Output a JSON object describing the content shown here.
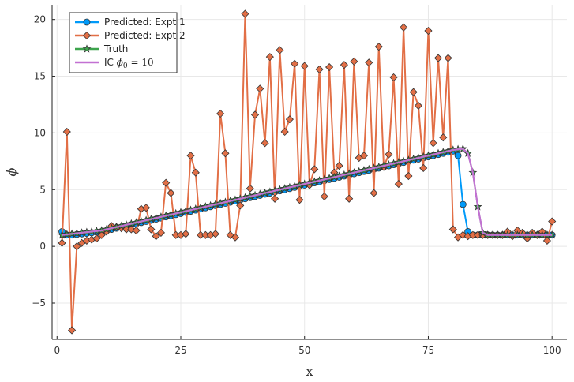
{
  "chart_data": {
    "type": "line",
    "xlabel": "x",
    "ylabel": "ϕ",
    "xlim": [
      -1,
      103
    ],
    "ylim": [
      -8.2,
      21.3
    ],
    "xticks": [
      0,
      25,
      50,
      75,
      100
    ],
    "yticks": [
      -5,
      0,
      5,
      10,
      15,
      20
    ],
    "grid": true,
    "legend_position": "top-left",
    "series": [
      {
        "name": "Predicted: Expt 1",
        "color": "#009af9",
        "marker": "circle",
        "x": [
          1,
          2,
          3,
          4,
          5,
          6,
          7,
          8,
          9,
          10,
          11,
          12,
          13,
          14,
          15,
          16,
          17,
          18,
          19,
          20,
          21,
          22,
          23,
          24,
          25,
          26,
          27,
          28,
          29,
          30,
          31,
          32,
          33,
          34,
          35,
          36,
          37,
          38,
          39,
          40,
          41,
          42,
          43,
          44,
          45,
          46,
          47,
          48,
          49,
          50,
          51,
          52,
          53,
          54,
          55,
          56,
          57,
          58,
          59,
          60,
          61,
          62,
          63,
          64,
          65,
          66,
          67,
          68,
          69,
          70,
          71,
          72,
          73,
          74,
          75,
          76,
          77,
          78,
          79,
          80,
          81,
          82,
          83,
          84,
          85,
          86,
          87,
          88,
          89,
          90,
          91,
          92,
          93,
          94,
          95,
          96,
          97,
          98,
          99,
          100
        ],
        "values": [
          1.3,
          1.0,
          1.0,
          1.05,
          1.1,
          1.15,
          1.2,
          1.25,
          1.3,
          1.4,
          1.5,
          1.6,
          1.7,
          1.8,
          1.9,
          2.0,
          2.1,
          2.2,
          2.3,
          2.4,
          2.5,
          2.6,
          2.7,
          2.8,
          2.9,
          3.0,
          3.1,
          3.2,
          3.3,
          3.4,
          3.5,
          3.6,
          3.7,
          3.8,
          3.9,
          4.0,
          4.1,
          4.2,
          4.3,
          4.4,
          4.5,
          4.6,
          4.7,
          4.8,
          4.9,
          5.0,
          5.1,
          5.2,
          5.3,
          5.4,
          5.5,
          5.6,
          5.7,
          5.8,
          5.9,
          6.0,
          6.1,
          6.2,
          6.3,
          6.4,
          6.5,
          6.6,
          6.7,
          6.8,
          6.9,
          7.0,
          7.1,
          7.2,
          7.3,
          7.4,
          7.5,
          7.6,
          7.7,
          7.8,
          7.9,
          8.0,
          8.1,
          8.2,
          8.3,
          8.4,
          8.0,
          3.7,
          1.3,
          1.0,
          1.0,
          1.0,
          1.0,
          1.0,
          1.0,
          1.0,
          1.0,
          1.0,
          1.0,
          1.0,
          1.0,
          1.0,
          1.0,
          1.0,
          1.0,
          1.0
        ]
      },
      {
        "name": "Predicted: Expt 2",
        "color": "#e26f46",
        "marker": "diamond",
        "x": [
          1,
          2,
          3,
          4,
          5,
          6,
          7,
          8,
          9,
          10,
          11,
          12,
          13,
          14,
          15,
          16,
          17,
          18,
          19,
          20,
          21,
          22,
          23,
          24,
          25,
          26,
          27,
          28,
          29,
          30,
          31,
          32,
          33,
          34,
          35,
          36,
          37,
          38,
          39,
          40,
          41,
          42,
          43,
          44,
          45,
          46,
          47,
          48,
          49,
          50,
          51,
          52,
          53,
          54,
          55,
          56,
          57,
          58,
          59,
          60,
          61,
          62,
          63,
          64,
          65,
          66,
          67,
          68,
          69,
          70,
          71,
          72,
          73,
          74,
          75,
          76,
          77,
          78,
          79,
          80,
          81,
          82,
          83,
          84,
          85,
          86,
          87,
          88,
          89,
          90,
          91,
          92,
          93,
          94,
          95,
          96,
          97,
          98,
          99,
          100
        ],
        "values": [
          0.3,
          10.1,
          -7.4,
          0.0,
          0.3,
          0.5,
          0.6,
          0.7,
          1.0,
          1.3,
          1.8,
          1.7,
          1.6,
          1.5,
          1.5,
          1.4,
          3.3,
          3.4,
          1.5,
          0.9,
          1.2,
          5.6,
          4.7,
          1.0,
          1.0,
          1.1,
          8.0,
          6.5,
          1.0,
          1.0,
          1.0,
          1.1,
          11.7,
          8.2,
          1.0,
          0.8,
          3.6,
          20.5,
          5.1,
          11.6,
          13.9,
          9.1,
          16.7,
          4.2,
          17.3,
          10.1,
          11.2,
          16.1,
          4.1,
          15.9,
          5.4,
          6.8,
          15.6,
          4.4,
          15.8,
          6.5,
          7.1,
          16.0,
          4.2,
          16.3,
          7.8,
          8.0,
          16.2,
          4.7,
          17.6,
          7.0,
          8.1,
          14.9,
          5.5,
          19.3,
          6.2,
          13.6,
          12.4,
          6.9,
          19.0,
          9.1,
          16.6,
          9.6,
          16.6,
          1.5,
          0.8,
          1.0,
          0.9,
          1.0,
          1.0,
          1.0,
          1.0,
          1.0,
          1.0,
          1.0,
          1.3,
          0.9,
          1.4,
          1.2,
          0.7,
          1.2,
          1.0,
          1.3,
          0.5,
          2.2
        ]
      },
      {
        "name": "Truth",
        "color": "#3da44d",
        "marker": "star",
        "x": [
          1,
          2,
          3,
          4,
          5,
          6,
          7,
          8,
          9,
          10,
          11,
          12,
          13,
          14,
          15,
          16,
          17,
          18,
          19,
          20,
          21,
          22,
          23,
          24,
          25,
          26,
          27,
          28,
          29,
          30,
          31,
          32,
          33,
          34,
          35,
          36,
          37,
          38,
          39,
          40,
          41,
          42,
          43,
          44,
          45,
          46,
          47,
          48,
          49,
          50,
          51,
          52,
          53,
          54,
          55,
          56,
          57,
          58,
          59,
          60,
          61,
          62,
          63,
          64,
          65,
          66,
          67,
          68,
          69,
          70,
          71,
          72,
          73,
          74,
          75,
          76,
          77,
          78,
          79,
          80,
          81,
          82,
          83,
          84,
          85,
          86,
          87,
          88,
          89,
          90,
          91,
          92,
          93,
          94,
          95,
          96,
          97,
          98,
          99,
          100
        ],
        "values": [
          1.0,
          1.05,
          1.1,
          1.15,
          1.2,
          1.25,
          1.3,
          1.35,
          1.4,
          1.5,
          1.6,
          1.7,
          1.8,
          1.9,
          2.0,
          2.1,
          2.2,
          2.3,
          2.4,
          2.5,
          2.6,
          2.7,
          2.8,
          2.9,
          3.0,
          3.1,
          3.2,
          3.3,
          3.4,
          3.5,
          3.6,
          3.7,
          3.8,
          3.9,
          4.0,
          4.1,
          4.2,
          4.3,
          4.4,
          4.5,
          4.6,
          4.7,
          4.8,
          4.9,
          5.0,
          5.1,
          5.2,
          5.3,
          5.4,
          5.5,
          5.6,
          5.7,
          5.8,
          5.9,
          6.0,
          6.1,
          6.2,
          6.3,
          6.4,
          6.5,
          6.6,
          6.7,
          6.8,
          6.9,
          7.0,
          7.1,
          7.2,
          7.3,
          7.4,
          7.5,
          7.6,
          7.7,
          7.8,
          7.9,
          8.0,
          8.1,
          8.2,
          8.3,
          8.4,
          8.5,
          8.55,
          8.6,
          8.2,
          6.5,
          3.5,
          1.2,
          1.0,
          1.0,
          1.0,
          1.0,
          1.0,
          1.0,
          1.0,
          1.0,
          1.0,
          1.0,
          1.0,
          1.0,
          1.0,
          1.0
        ]
      },
      {
        "name": "IC $\\phi_0 = 10$",
        "color": "#c271d2",
        "marker": "none",
        "x": [
          1,
          2,
          3,
          4,
          5,
          6,
          7,
          8,
          9,
          10,
          11,
          12,
          13,
          14,
          15,
          16,
          17,
          18,
          19,
          20,
          21,
          22,
          23,
          24,
          25,
          26,
          27,
          28,
          29,
          30,
          31,
          32,
          33,
          34,
          35,
          36,
          37,
          38,
          39,
          40,
          41,
          42,
          43,
          44,
          45,
          46,
          47,
          48,
          49,
          50,
          51,
          52,
          53,
          54,
          55,
          56,
          57,
          58,
          59,
          60,
          61,
          62,
          63,
          64,
          65,
          66,
          67,
          68,
          69,
          70,
          71,
          72,
          73,
          74,
          75,
          76,
          77,
          78,
          79,
          80,
          81,
          82,
          83,
          84,
          85,
          86,
          87,
          88,
          89,
          90,
          91,
          92,
          93,
          94,
          95,
          96,
          97,
          98,
          99,
          100
        ],
        "values": [
          1.0,
          1.05,
          1.1,
          1.15,
          1.2,
          1.25,
          1.3,
          1.35,
          1.4,
          1.5,
          1.6,
          1.7,
          1.8,
          1.9,
          2.0,
          2.1,
          2.2,
          2.3,
          2.4,
          2.5,
          2.6,
          2.7,
          2.8,
          2.9,
          3.0,
          3.1,
          3.2,
          3.3,
          3.4,
          3.5,
          3.6,
          3.7,
          3.8,
          3.9,
          4.0,
          4.1,
          4.2,
          4.3,
          4.4,
          4.5,
          4.6,
          4.7,
          4.8,
          4.9,
          5.0,
          5.1,
          5.2,
          5.3,
          5.4,
          5.5,
          5.6,
          5.7,
          5.8,
          5.9,
          6.0,
          6.1,
          6.2,
          6.3,
          6.4,
          6.5,
          6.6,
          6.7,
          6.8,
          6.9,
          7.0,
          7.1,
          7.2,
          7.3,
          7.4,
          7.5,
          7.6,
          7.7,
          7.8,
          7.9,
          8.0,
          8.1,
          8.2,
          8.3,
          8.4,
          8.5,
          8.55,
          8.6,
          8.2,
          6.5,
          3.5,
          1.2,
          1.0,
          1.0,
          1.0,
          1.0,
          1.0,
          1.0,
          1.0,
          1.0,
          1.0,
          1.0,
          1.0,
          1.0,
          1.0,
          1.0
        ]
      }
    ]
  }
}
